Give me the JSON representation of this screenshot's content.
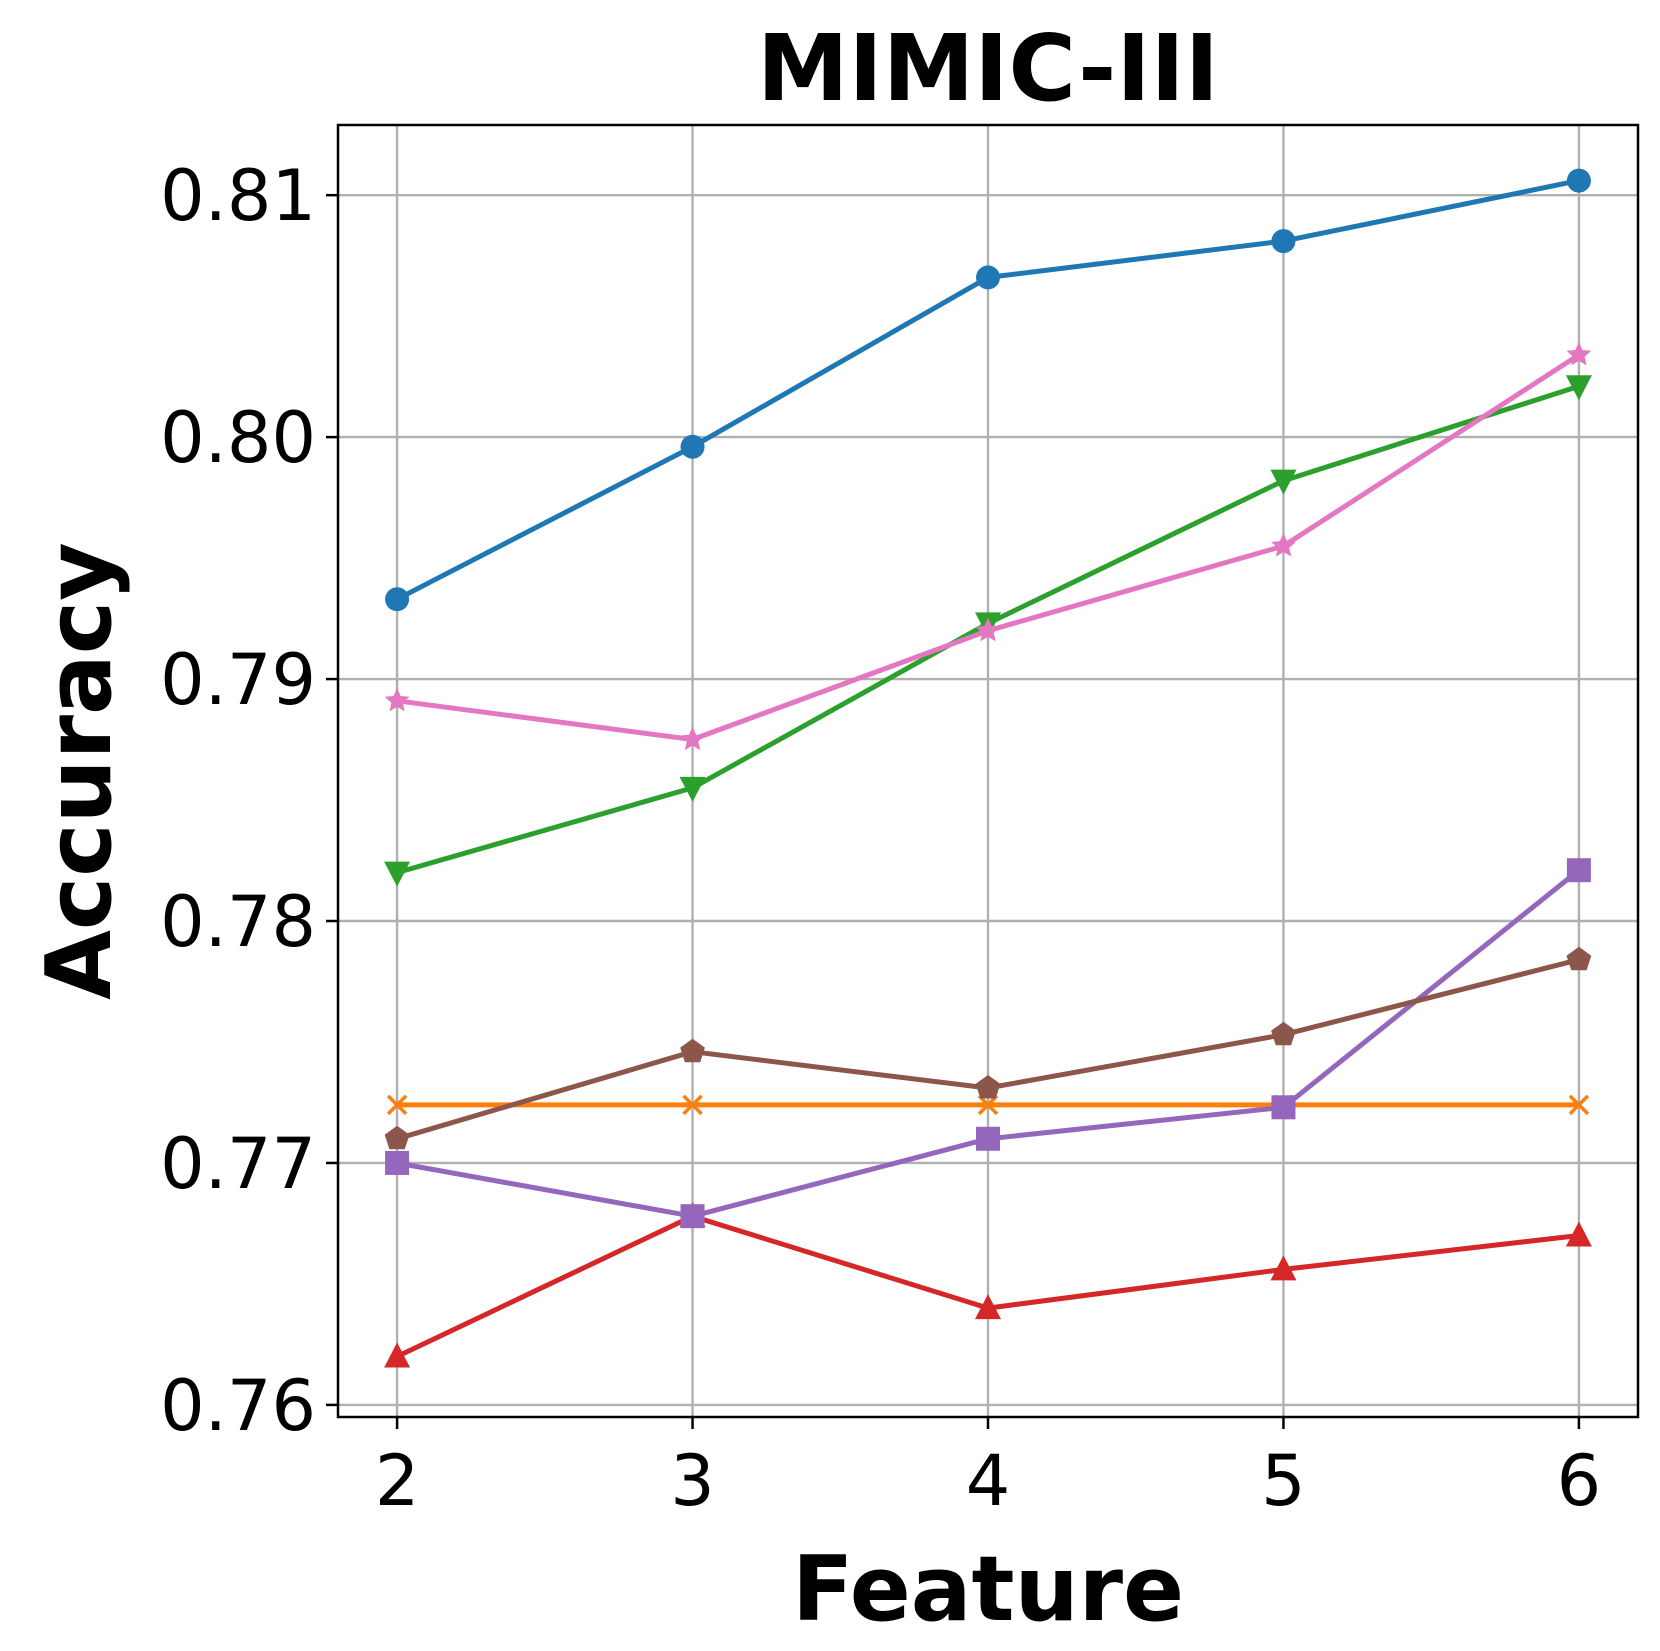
{
  "chart_data": {
    "type": "line",
    "title": "MIMIC-III",
    "xlabel": "Feature",
    "ylabel": "Accuracy",
    "x": [
      2,
      3,
      4,
      5,
      6
    ],
    "x_tick_labels": [
      "2",
      "3",
      "4",
      "5",
      "6"
    ],
    "xlim": [
      1.8,
      6.2
    ],
    "y_ticks": [
      0.76,
      0.77,
      0.78,
      0.79,
      0.8,
      0.81
    ],
    "y_tick_labels": [
      "0.76",
      "0.77",
      "0.78",
      "0.79",
      "0.80",
      "0.81"
    ],
    "ylim": [
      0.7595,
      0.8129
    ],
    "grid": true,
    "series": [
      {
        "color": "#1f77b4",
        "marker": "circle",
        "values": [
          0.7933,
          0.7996,
          0.8066,
          0.8081,
          0.8106
        ]
      },
      {
        "color": "#ff7f0e",
        "marker": "x",
        "values": [
          0.7724,
          0.7724,
          0.7724,
          0.7724,
          0.7724
        ]
      },
      {
        "color": "#2ca02c",
        "marker": "triangle-down",
        "values": [
          0.782,
          0.7855,
          0.7923,
          0.7982,
          0.8021
        ]
      },
      {
        "color": "#d62728",
        "marker": "triangle-up",
        "values": [
          0.762,
          0.7678,
          0.764,
          0.7656,
          0.767
        ]
      },
      {
        "color": "#9467bd",
        "marker": "square",
        "values": [
          0.77,
          0.7678,
          0.771,
          0.7723,
          0.7821
        ]
      },
      {
        "color": "#8c564b",
        "marker": "pentagon",
        "values": [
          0.771,
          0.7746,
          0.7731,
          0.7753,
          0.7784
        ]
      },
      {
        "color": "#e377c2",
        "marker": "star",
        "values": [
          0.7891,
          0.7875,
          0.792,
          0.7955,
          0.8034
        ]
      }
    ]
  }
}
